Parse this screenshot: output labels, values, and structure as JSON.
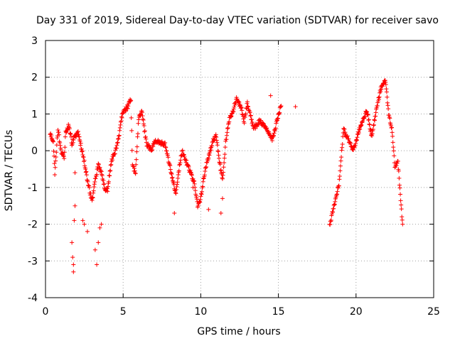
{
  "chart_data": {
    "type": "scatter",
    "title": "Day 331 of 2019, Sidereal Day-to-day VTEC variation (SDTVAR) for receiver savo",
    "xlabel": "GPS time / hours",
    "ylabel": "SDTVAR / TECUs",
    "xlim": [
      0,
      25
    ],
    "ylim": [
      -4,
      3
    ],
    "xticks": [
      0,
      5,
      10,
      15,
      20,
      25
    ],
    "yticks": [
      -4,
      -3,
      -2,
      -1,
      0,
      1,
      2,
      3
    ],
    "grid": true,
    "marker": "+",
    "color": "#ff0000",
    "series": [
      {
        "name": "SDTVAR",
        "knots": [
          [
            0.3,
            0.5
          ],
          [
            0.5,
            0.2
          ],
          [
            0.6,
            -0.6
          ],
          [
            0.8,
            0.6
          ],
          [
            1.0,
            0.0
          ],
          [
            1.2,
            -0.2
          ],
          [
            1.3,
            0.5
          ],
          [
            1.5,
            0.7
          ],
          [
            1.7,
            0.2
          ],
          [
            1.9,
            0.4
          ],
          [
            2.1,
            0.5
          ],
          [
            2.3,
            0.1
          ],
          [
            2.5,
            -0.3
          ],
          [
            2.7,
            -0.8
          ],
          [
            2.9,
            -1.2
          ],
          [
            3.0,
            -1.4
          ],
          [
            3.2,
            -0.8
          ],
          [
            3.4,
            -0.4
          ],
          [
            3.6,
            -0.6
          ],
          [
            3.8,
            -1.0
          ],
          [
            4.0,
            -1.1
          ],
          [
            4.1,
            -0.7
          ],
          [
            4.3,
            -0.2
          ],
          [
            4.5,
            0.0
          ],
          [
            4.7,
            0.3
          ],
          [
            4.9,
            0.9
          ],
          [
            5.1,
            1.1
          ],
          [
            5.3,
            1.2
          ],
          [
            5.5,
            1.4
          ],
          [
            5.6,
            -0.4
          ],
          [
            5.8,
            -0.6
          ],
          [
            6.0,
            0.9
          ],
          [
            6.2,
            1.1
          ],
          [
            6.5,
            0.2
          ],
          [
            6.8,
            0.0
          ],
          [
            7.1,
            0.3
          ],
          [
            7.4,
            0.2
          ],
          [
            7.7,
            0.2
          ],
          [
            8.0,
            -0.4
          ],
          [
            8.2,
            -0.8
          ],
          [
            8.4,
            -1.2
          ],
          [
            8.6,
            -0.5
          ],
          [
            8.8,
            0.0
          ],
          [
            9.6,
            -0.9
          ],
          [
            9.8,
            -1.5
          ],
          [
            10.0,
            -1.3
          ],
          [
            10.2,
            -0.7
          ],
          [
            10.4,
            -0.3
          ],
          [
            10.6,
            0.0
          ],
          [
            10.8,
            0.3
          ],
          [
            11.0,
            0.4
          ],
          [
            11.2,
            -0.3
          ],
          [
            11.4,
            -0.8
          ],
          [
            11.6,
            0.2
          ],
          [
            11.8,
            0.8
          ],
          [
            12.0,
            1.0
          ],
          [
            12.3,
            1.4
          ],
          [
            12.6,
            1.2
          ],
          [
            12.8,
            0.8
          ],
          [
            13.0,
            1.3
          ],
          [
            13.4,
            0.6
          ],
          [
            13.8,
            0.8
          ],
          [
            14.2,
            0.6
          ],
          [
            14.6,
            0.3
          ],
          [
            14.9,
            0.8
          ],
          [
            15.2,
            1.3
          ],
          [
            18.3,
            -2.0
          ],
          [
            18.6,
            -1.5
          ],
          [
            18.9,
            -0.9
          ],
          [
            19.2,
            0.6
          ],
          [
            19.5,
            0.3
          ],
          [
            19.8,
            0.0
          ],
          [
            20.1,
            0.4
          ],
          [
            20.4,
            0.8
          ],
          [
            20.7,
            1.1
          ],
          [
            21.0,
            0.4
          ],
          [
            21.3,
            1.1
          ],
          [
            21.6,
            1.7
          ],
          [
            21.9,
            1.9
          ],
          [
            22.1,
            1.0
          ],
          [
            22.3,
            0.6
          ],
          [
            22.5,
            -0.4
          ],
          [
            22.7,
            -0.3
          ],
          [
            22.9,
            -1.5
          ],
          [
            23.0,
            -2.0
          ]
        ],
        "scatter_points": [
          [
            1.7,
            -2.5
          ],
          [
            1.75,
            -2.9
          ],
          [
            1.8,
            -3.1
          ],
          [
            1.8,
            -3.3
          ],
          [
            1.85,
            -1.9
          ],
          [
            1.9,
            -1.5
          ],
          [
            1.9,
            -0.6
          ],
          [
            2.4,
            -1.9
          ],
          [
            2.5,
            -2.0
          ],
          [
            2.7,
            -2.2
          ],
          [
            3.2,
            -2.7
          ],
          [
            3.3,
            -3.1
          ],
          [
            3.4,
            -2.5
          ],
          [
            3.5,
            -2.1
          ],
          [
            3.6,
            -2.0
          ],
          [
            8.3,
            -1.7
          ],
          [
            9.5,
            -1.0
          ],
          [
            10.5,
            -1.6
          ],
          [
            11.3,
            -1.7
          ],
          [
            11.4,
            -1.3
          ],
          [
            14.5,
            1.5
          ],
          [
            16.1,
            1.2
          ]
        ]
      }
    ]
  }
}
